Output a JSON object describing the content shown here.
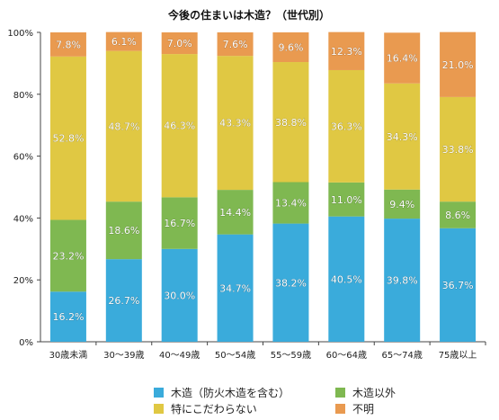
{
  "chart_data": {
    "type": "bar",
    "stacked": true,
    "percent": true,
    "title": "今後の住まいは木造？（世代別）",
    "xlabel": "",
    "ylabel": "",
    "ylim": [
      0,
      100
    ],
    "yticks": [
      "0%",
      "20%",
      "40%",
      "60%",
      "80%",
      "100%"
    ],
    "grid": false,
    "legend_position": "bottom",
    "categories": [
      "30歳未満",
      "30～39歳",
      "40～49歳",
      "50～54歳",
      "55～59歳",
      "60～64歳",
      "65～74歳",
      "75歳以上"
    ],
    "series": [
      {
        "name": "木造（防火木造を含む）",
        "color": "#3aabdb",
        "values": [
          16.2,
          26.7,
          30.0,
          34.7,
          38.2,
          40.5,
          39.8,
          36.7
        ],
        "labels": [
          "16.2%",
          "26.7%",
          "30.0%",
          "34.7%",
          "38.2%",
          "40.5%",
          "39.8%",
          "36.7%"
        ]
      },
      {
        "name": "木造以外",
        "color": "#7fb851",
        "values": [
          23.2,
          18.6,
          16.7,
          14.4,
          13.4,
          11.0,
          9.4,
          8.6
        ],
        "labels": [
          "23.2%",
          "18.6%",
          "16.7%",
          "14.4%",
          "13.4%",
          "11.0%",
          "9.4%",
          "8.6%"
        ]
      },
      {
        "name": "特にこだわらない",
        "color": "#e0c843",
        "values": [
          52.8,
          48.7,
          46.3,
          43.3,
          38.8,
          36.3,
          34.3,
          33.8
        ],
        "labels": [
          "52.8%",
          "48.7%",
          "46.3%",
          "43.3%",
          "38.8%",
          "36.3%",
          "34.3%",
          "33.8%"
        ]
      },
      {
        "name": "不明",
        "color": "#e99a50",
        "values": [
          7.8,
          6.1,
          7.0,
          7.6,
          9.6,
          12.3,
          16.4,
          21.0
        ],
        "labels": [
          "7.8%",
          "6.1%",
          "7.0%",
          "7.6%",
          "9.6%",
          "12.3%",
          "16.4%",
          "21.0%"
        ]
      }
    ]
  }
}
